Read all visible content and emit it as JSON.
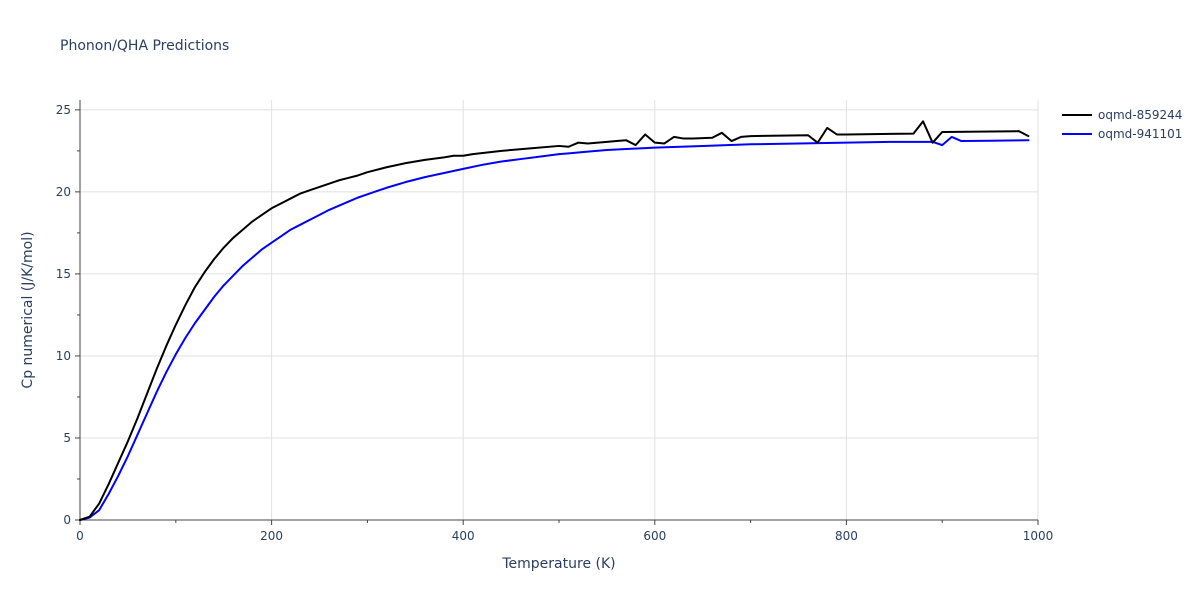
{
  "chart_data": {
    "type": "line",
    "title": "Phonon/QHA Predictions",
    "xlabel": "Temperature (K)",
    "ylabel": "Cp numerical (J/K/mol)",
    "xlim": [
      0,
      1000
    ],
    "ylim": [
      0,
      25.6
    ],
    "xticks": [
      0,
      200,
      400,
      600,
      800,
      1000
    ],
    "yticks": [
      0,
      5,
      10,
      15,
      20,
      25
    ],
    "grid": true,
    "legend_position": "top-right",
    "series": [
      {
        "name": "oqmd-859244",
        "color": "#000000",
        "x": [
          0,
          10,
          20,
          30,
          40,
          50,
          60,
          70,
          80,
          90,
          100,
          110,
          120,
          130,
          140,
          150,
          160,
          170,
          180,
          190,
          200,
          210,
          220,
          230,
          240,
          250,
          260,
          270,
          280,
          290,
          300,
          320,
          340,
          360,
          380,
          390,
          400,
          410,
          440,
          470,
          500,
          510,
          520,
          530,
          550,
          560,
          570,
          580,
          590,
          600,
          610,
          620,
          630,
          640,
          660,
          670,
          680,
          690,
          700,
          760,
          770,
          780,
          790,
          800,
          870,
          880,
          890,
          900,
          980,
          990
        ],
        "y": [
          0,
          0.2,
          1.0,
          2.2,
          3.5,
          4.8,
          6.2,
          7.7,
          9.2,
          10.6,
          11.9,
          13.1,
          14.2,
          15.1,
          15.9,
          16.6,
          17.2,
          17.7,
          18.2,
          18.6,
          19.0,
          19.3,
          19.6,
          19.9,
          20.1,
          20.3,
          20.5,
          20.7,
          20.85,
          21.0,
          21.2,
          21.5,
          21.75,
          21.95,
          22.1,
          22.2,
          22.2,
          22.3,
          22.5,
          22.65,
          22.8,
          22.75,
          23.0,
          22.95,
          23.05,
          23.1,
          23.15,
          22.85,
          23.5,
          23.0,
          22.95,
          23.35,
          23.25,
          23.25,
          23.3,
          23.6,
          23.1,
          23.35,
          23.4,
          23.45,
          23.0,
          23.9,
          23.5,
          23.5,
          23.55,
          24.3,
          23.0,
          23.65,
          23.7,
          23.4
        ]
      },
      {
        "name": "oqmd-941101",
        "color": "#0000ff",
        "x": [
          0,
          10,
          20,
          30,
          40,
          50,
          60,
          70,
          80,
          90,
          100,
          110,
          120,
          130,
          140,
          150,
          160,
          170,
          180,
          190,
          200,
          210,
          220,
          230,
          240,
          250,
          260,
          270,
          280,
          290,
          300,
          320,
          340,
          360,
          380,
          400,
          420,
          440,
          460,
          480,
          500,
          510,
          520,
          530,
          550,
          600,
          650,
          700,
          750,
          800,
          850,
          890,
          900,
          910,
          920,
          950,
          990
        ],
        "y": [
          0,
          0.15,
          0.6,
          1.6,
          2.7,
          3.9,
          5.2,
          6.5,
          7.8,
          9.0,
          10.1,
          11.1,
          12.0,
          12.8,
          13.6,
          14.3,
          14.9,
          15.5,
          16.0,
          16.5,
          16.9,
          17.3,
          17.7,
          18.0,
          18.3,
          18.6,
          18.9,
          19.15,
          19.4,
          19.65,
          19.85,
          20.25,
          20.6,
          20.9,
          21.15,
          21.4,
          21.65,
          21.85,
          22.0,
          22.15,
          22.3,
          22.35,
          22.4,
          22.45,
          22.55,
          22.7,
          22.8,
          22.9,
          22.95,
          23.0,
          23.05,
          23.05,
          22.85,
          23.35,
          23.1,
          23.12,
          23.15
        ]
      }
    ]
  }
}
